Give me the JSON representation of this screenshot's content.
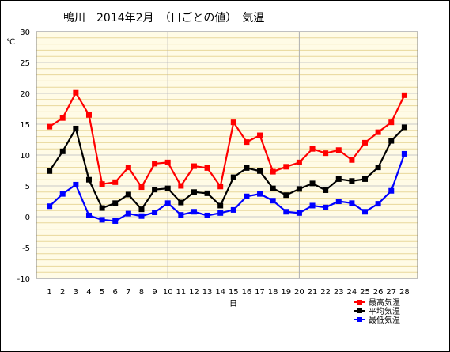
{
  "chart_data": {
    "type": "line",
    "title": "鴨川　2014年2月　（日ごとの値）　気温",
    "ylabel": "℃",
    "xlabel": "日",
    "ylim": [
      -10,
      30
    ],
    "yticks": [
      30,
      25,
      20,
      15,
      10,
      5,
      0,
      -5,
      -10
    ],
    "y_minor_step": 1,
    "x": [
      1,
      2,
      3,
      4,
      5,
      6,
      7,
      8,
      9,
      10,
      11,
      12,
      13,
      14,
      15,
      16,
      17,
      18,
      19,
      20,
      21,
      22,
      23,
      24,
      25,
      26,
      27,
      28
    ],
    "grid": true,
    "legend_position": "bottom-right",
    "series": [
      {
        "name": "最高気温",
        "color": "#ff0000",
        "values": [
          14.6,
          16.0,
          20.1,
          16.5,
          5.3,
          5.6,
          8.0,
          4.8,
          8.6,
          8.8,
          5.0,
          8.2,
          7.9,
          4.9,
          15.3,
          12.1,
          13.2,
          7.3,
          8.1,
          8.8,
          11.0,
          10.3,
          10.8,
          9.2,
          12.0,
          13.7,
          15.3,
          19.7
        ]
      },
      {
        "name": "平均気温",
        "color": "#000000",
        "values": [
          7.4,
          10.6,
          14.3,
          6.0,
          1.4,
          2.2,
          3.6,
          1.2,
          4.4,
          4.6,
          2.3,
          4.0,
          3.8,
          1.8,
          6.4,
          7.9,
          7.4,
          4.6,
          3.5,
          4.5,
          5.4,
          4.3,
          6.1,
          5.8,
          6.1,
          8.0,
          12.3,
          14.5
        ]
      },
      {
        "name": "最低気温",
        "color": "#0000ff",
        "values": [
          1.7,
          3.7,
          5.2,
          0.2,
          -0.5,
          -0.7,
          0.5,
          0.1,
          0.7,
          2.2,
          0.3,
          0.8,
          0.2,
          0.6,
          1.1,
          3.3,
          3.7,
          2.6,
          0.8,
          0.6,
          1.8,
          1.5,
          2.5,
          2.2,
          0.8,
          2.1,
          4.2,
          10.2
        ]
      }
    ]
  }
}
